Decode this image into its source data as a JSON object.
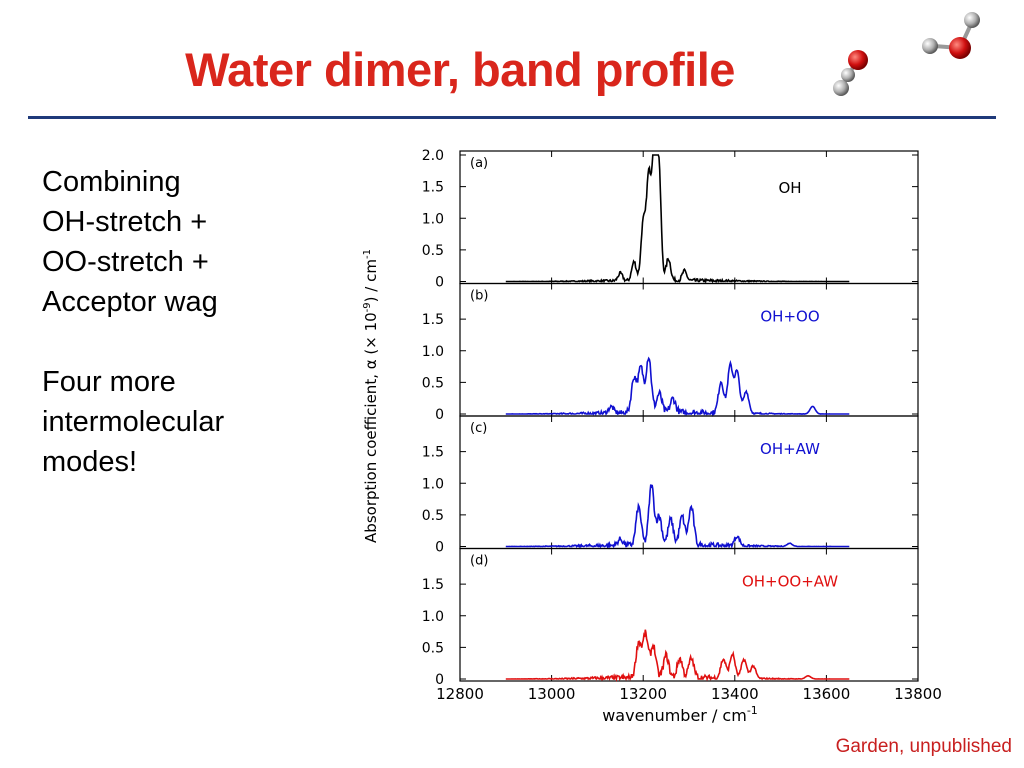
{
  "slide": {
    "title": "Water dimer, band profile",
    "text_blocks": [
      [
        "Combining",
        "OH-stretch +",
        "OO-stretch +",
        "Acceptor wag"
      ],
      [
        "Four more",
        "intermolecular",
        "modes!"
      ]
    ],
    "credit": "Garden, unpublished"
  },
  "chart_data": {
    "type": "line",
    "xlabel": "wavenumber / cm",
    "xlabel_superscript": "-1",
    "ylabel": "Absorption coefficient, α (× 10",
    "ylabel_superscript": "-9",
    "ylabel_suffix": ") / cm",
    "ylabel_suffix_superscript": "-1",
    "xlim": [
      12800,
      13800
    ],
    "x_ticks": [
      "12800",
      "13000",
      "13200",
      "13400",
      "13600",
      "13800"
    ],
    "panels": [
      {
        "label": "(a)",
        "legend": "OH",
        "color": "#000000",
        "ylim": [
          0,
          2.0
        ],
        "y_ticks": [
          "2.0",
          "1.5",
          "1.0",
          "0.5",
          "0"
        ],
        "peaks": [
          {
            "x": 13200,
            "y": 0.9
          },
          {
            "x": 13212,
            "y": 1.6
          },
          {
            "x": 13224,
            "y": 2.0
          },
          {
            "x": 13234,
            "y": 1.75
          },
          {
            "x": 13180,
            "y": 0.3
          },
          {
            "x": 13255,
            "y": 0.35
          },
          {
            "x": 13150,
            "y": 0.12
          },
          {
            "x": 13290,
            "y": 0.15
          }
        ]
      },
      {
        "label": "(b)",
        "legend": "OH+OO",
        "color": "#1010d0",
        "ylim": [
          0,
          2.0
        ],
        "y_ticks": [
          "1.5",
          "1.0",
          "0.5",
          "0"
        ],
        "peaks": [
          {
            "x": 13180,
            "y": 0.55
          },
          {
            "x": 13195,
            "y": 0.7
          },
          {
            "x": 13212,
            "y": 0.88
          },
          {
            "x": 13235,
            "y": 0.3
          },
          {
            "x": 13265,
            "y": 0.22
          },
          {
            "x": 13370,
            "y": 0.5
          },
          {
            "x": 13390,
            "y": 0.75
          },
          {
            "x": 13405,
            "y": 0.65
          },
          {
            "x": 13425,
            "y": 0.35
          },
          {
            "x": 13570,
            "y": 0.12
          },
          {
            "x": 13130,
            "y": 0.1
          }
        ]
      },
      {
        "label": "(c)",
        "legend": "OH+AW",
        "color": "#1010d0",
        "ylim": [
          0,
          2.0
        ],
        "y_ticks": [
          "1.5",
          "1.0",
          "0.5",
          "0"
        ],
        "peaks": [
          {
            "x": 13190,
            "y": 0.6
          },
          {
            "x": 13218,
            "y": 0.95
          },
          {
            "x": 13235,
            "y": 0.45
          },
          {
            "x": 13260,
            "y": 0.4
          },
          {
            "x": 13285,
            "y": 0.45
          },
          {
            "x": 13305,
            "y": 0.6
          },
          {
            "x": 13405,
            "y": 0.15
          },
          {
            "x": 13150,
            "y": 0.1
          },
          {
            "x": 13520,
            "y": 0.05
          }
        ]
      },
      {
        "label": "(d)",
        "legend": "OH+OO+AW",
        "color": "#e01010",
        "ylim": [
          0,
          2.0
        ],
        "y_ticks": [
          "1.5",
          "1.0",
          "0.5",
          "0"
        ],
        "peaks": [
          {
            "x": 13190,
            "y": 0.55
          },
          {
            "x": 13205,
            "y": 0.68
          },
          {
            "x": 13222,
            "y": 0.5
          },
          {
            "x": 13250,
            "y": 0.35
          },
          {
            "x": 13280,
            "y": 0.3
          },
          {
            "x": 13305,
            "y": 0.3
          },
          {
            "x": 13375,
            "y": 0.3
          },
          {
            "x": 13395,
            "y": 0.38
          },
          {
            "x": 13420,
            "y": 0.3
          },
          {
            "x": 13440,
            "y": 0.2
          },
          {
            "x": 13560,
            "y": 0.05
          }
        ]
      }
    ]
  }
}
